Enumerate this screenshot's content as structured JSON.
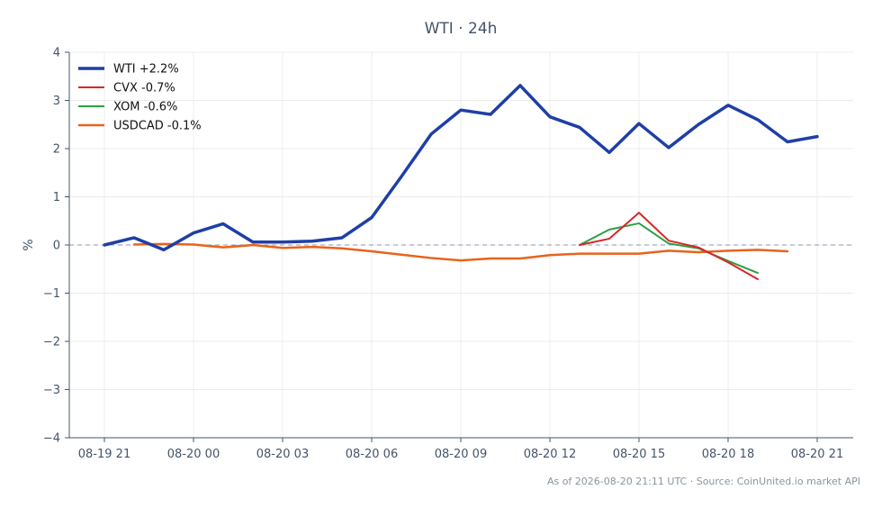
{
  "chart_data": {
    "type": "line",
    "title": "WTI · 24h",
    "xlabel": "",
    "ylabel": "%",
    "ylim": [
      -4,
      4
    ],
    "y_ticks": [
      4,
      3,
      2,
      1,
      0,
      -1,
      -2,
      -3,
      -4
    ],
    "y_tick_labels": [
      "4",
      "3",
      "2",
      "1",
      "0",
      "−1",
      "−2",
      "−3",
      "−4"
    ],
    "x_ticks": [
      0,
      3,
      6,
      9,
      12,
      15,
      18,
      21,
      24
    ],
    "x_tick_labels": [
      "08-19 21",
      "08-20 00",
      "08-20 03",
      "08-20 06",
      "08-20 09",
      "08-20 12",
      "08-20 15",
      "08-20 18",
      "08-20 21"
    ],
    "x_unit": "hours",
    "grid": true,
    "zero_line": true,
    "legend_position": "top-left",
    "series": [
      {
        "name": "WTI +2.2%",
        "color": "#1f3fa6",
        "width": 3.5,
        "x": [
          0,
          1,
          2,
          3,
          4,
          5,
          6,
          7,
          8,
          9,
          10,
          11,
          12,
          13,
          14,
          15,
          16,
          17,
          18,
          19,
          20,
          21,
          22,
          23,
          24
        ],
        "values": [
          0.0,
          0.15,
          -0.1,
          0.25,
          0.44,
          0.06,
          0.06,
          0.08,
          0.15,
          0.57,
          1.42,
          2.3,
          2.8,
          2.71,
          3.31,
          2.66,
          2.44,
          1.92,
          2.52,
          2.02,
          2.5,
          2.9,
          2.6,
          2.14,
          2.25
        ]
      },
      {
        "name": "CVX -0.7%",
        "color": "#d62728",
        "width": 2,
        "x": [
          16,
          17,
          18,
          19,
          20,
          21,
          22
        ],
        "values": [
          0.0,
          0.13,
          0.67,
          0.09,
          -0.05,
          -0.36,
          -0.71
        ]
      },
      {
        "name": "XOM -0.6%",
        "color": "#2ca044",
        "width": 2,
        "x": [
          16,
          17,
          18,
          19,
          20,
          21,
          22
        ],
        "values": [
          0.0,
          0.32,
          0.45,
          0.03,
          -0.07,
          -0.33,
          -0.58
        ]
      },
      {
        "name": "USDCAD -0.1%",
        "color": "#e8631c",
        "width": 2.5,
        "x": [
          1,
          2,
          3,
          4,
          5,
          6,
          7,
          8,
          9,
          10,
          11,
          12,
          13,
          14,
          15,
          16,
          17,
          18,
          19,
          20,
          21,
          22,
          23
        ],
        "values": [
          0.01,
          0.02,
          0.01,
          -0.05,
          0.0,
          -0.06,
          -0.04,
          -0.07,
          -0.13,
          -0.2,
          -0.27,
          -0.32,
          -0.28,
          -0.28,
          -0.21,
          -0.18,
          -0.18,
          -0.18,
          -0.12,
          -0.15,
          -0.12,
          -0.1,
          -0.13
        ]
      }
    ]
  },
  "footer": {
    "text": "As of 2026-08-20 21:11 UTC · Source: CoinUnited.io market API"
  }
}
